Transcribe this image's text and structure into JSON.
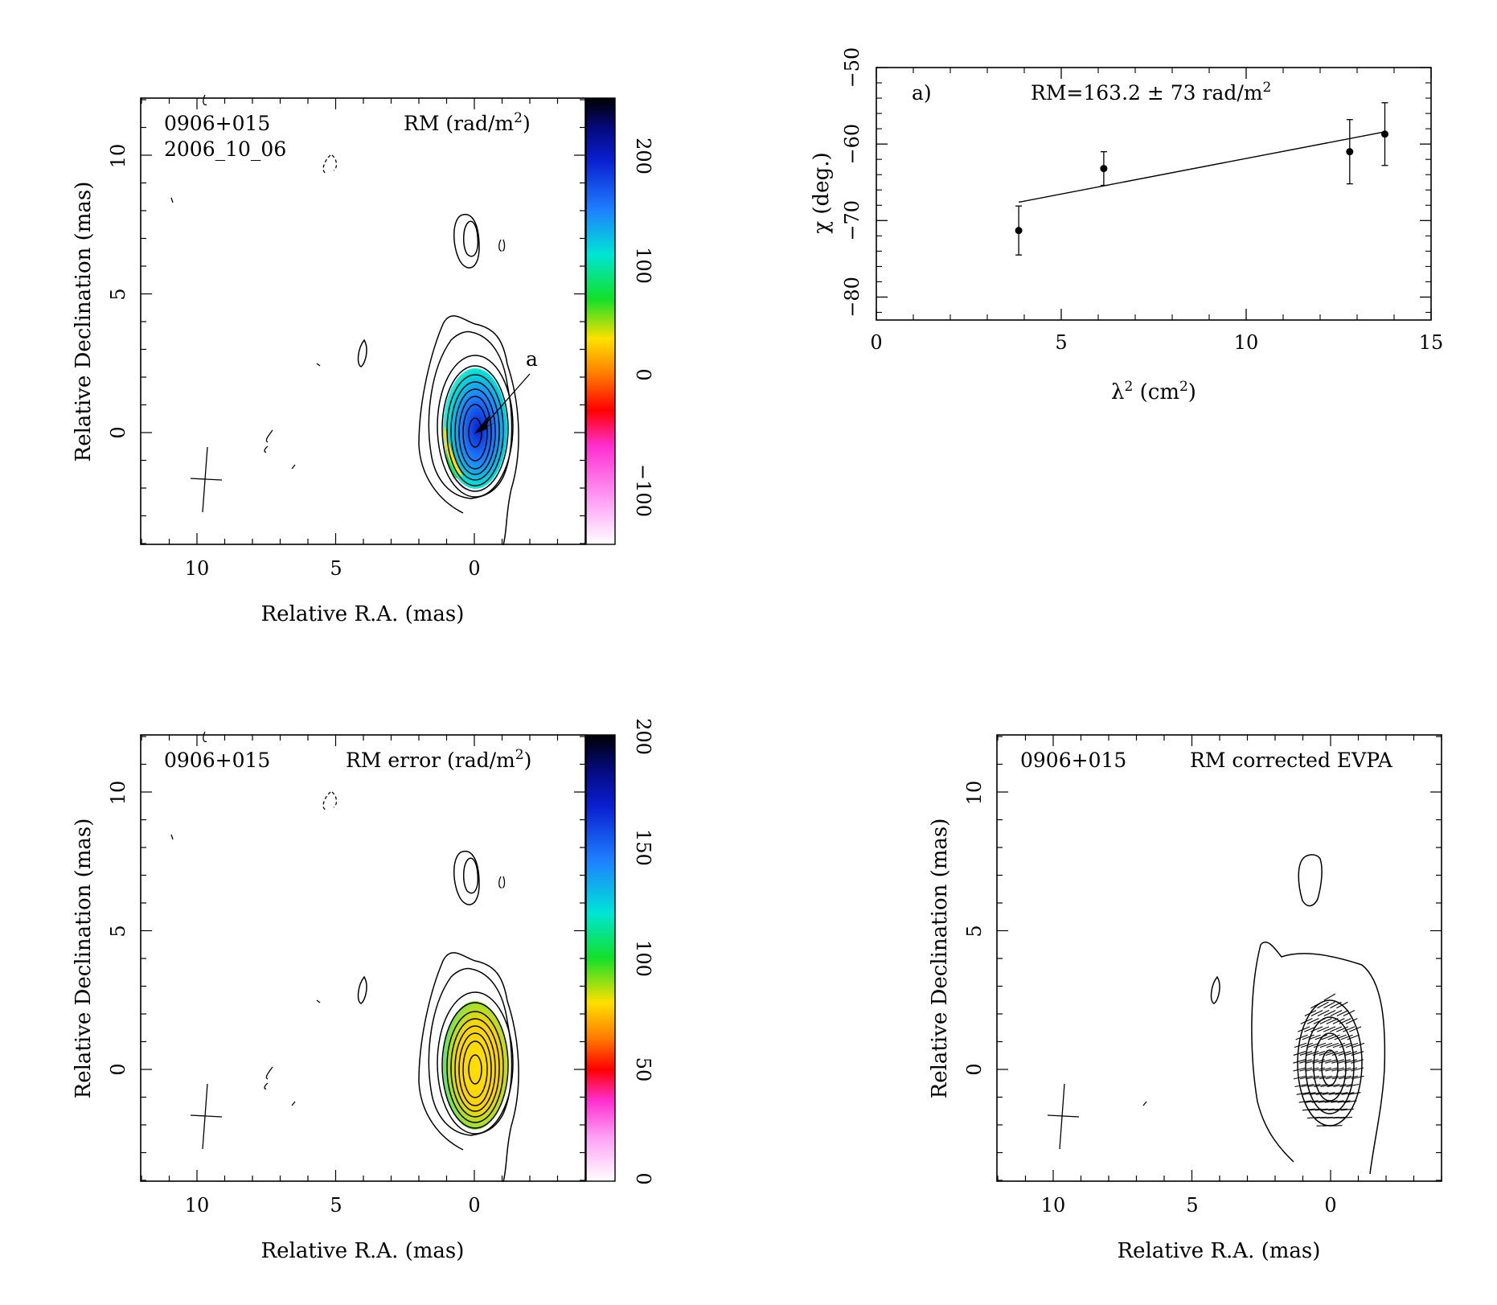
{
  "panels": {
    "rm_map": {
      "source": "0906+015",
      "date": "2006_10_06",
      "quantity": "RM (rad/m",
      "quantity_sup": "2",
      "quantity_close": ")",
      "component_label": "a",
      "xlabel": "Relative R.A. (mas)",
      "ylabel": "Relative Declination (mas)",
      "x_ticks": [
        "10",
        "5",
        "0"
      ],
      "y_ticks": [
        "10",
        "5",
        "0"
      ],
      "colorbar_ticks": [
        "200",
        "100",
        "0",
        "−100"
      ]
    },
    "rm_error_map": {
      "source": "0906+015",
      "quantity": "RM error (rad/m",
      "quantity_sup": "2",
      "quantity_close": ")",
      "xlabel": "Relative R.A. (mas)",
      "ylabel": "Relative Declination (mas)",
      "x_ticks": [
        "10",
        "5",
        "0"
      ],
      "y_ticks": [
        "10",
        "5",
        "0"
      ],
      "colorbar_ticks": [
        "200",
        "150",
        "100",
        "50",
        "0"
      ]
    },
    "evpa_map": {
      "source": "0906+015",
      "quantity": "RM corrected EVPA",
      "xlabel": "Relative R.A. (mas)",
      "ylabel": "Relative Declination (mas)",
      "x_ticks": [
        "10",
        "5",
        "0"
      ],
      "y_ticks": [
        "10",
        "5",
        "0"
      ]
    }
  },
  "chart_data": [
    {
      "type": "scatter",
      "panel": "a)",
      "annotation": "RM=163.2 ± 73 rad/m",
      "annotation_sup": "2",
      "xlabel": "λ",
      "xlabel_sup": "2",
      "xlabel_rest": " (cm",
      "xlabel_sup2": "2",
      "xlabel_close": ")",
      "ylabel": "χ (deg.)",
      "xlim": [
        0,
        15
      ],
      "ylim": [
        -83,
        -50
      ],
      "x_ticks": [
        0,
        5,
        10,
        15
      ],
      "y_ticks": [
        -50,
        -60,
        -70,
        -80
      ],
      "points": [
        {
          "x": 3.85,
          "y": -71.3,
          "err": 3.2
        },
        {
          "x": 6.15,
          "y": -63.2,
          "err": 2.2
        },
        {
          "x": 12.8,
          "y": -61.0,
          "err": 4.2
        },
        {
          "x": 13.75,
          "y": -58.7,
          "err": 4.1
        }
      ],
      "fit": {
        "x": [
          3.85,
          13.75
        ],
        "y": [
          -67.6,
          -58.4
        ]
      }
    }
  ]
}
